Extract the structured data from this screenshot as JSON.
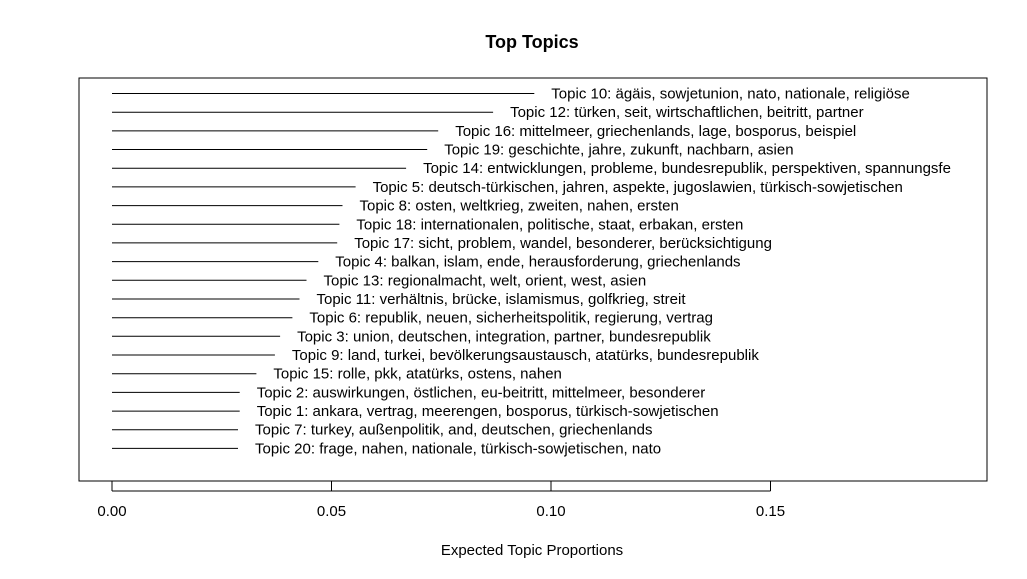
{
  "chart_data": {
    "type": "bar",
    "orientation": "horizontal",
    "title": "Top Topics",
    "xlabel": "Expected Topic Proportions",
    "ylabel": "",
    "xlim": [
      0,
      0.2
    ],
    "x_ticks": [
      0.0,
      0.05,
      0.1,
      0.15
    ],
    "x_tick_labels": [
      "0.00",
      "0.05",
      "0.10",
      "0.15"
    ],
    "grid": false,
    "legend": "none",
    "categories": [
      "Topic 10: ägäis, sowjetunion, nato, nationale, religiöse",
      "Topic 12: türken, seit, wirtschaftlichen, beitritt, partner",
      "Topic 16: mittelmeer, griechenlands, lage, bosporus, beispiel",
      "Topic 19: geschichte, jahre, zukunft, nachbarn, asien",
      "Topic 14: entwicklungen, probleme, bundesrepublik, perspektiven, spannungsfe",
      "Topic 5: deutsch-türkischen, jahren, aspekte, jugoslawien, türkisch-sowjetischen",
      "Topic 8: osten, weltkrieg, zweiten, nahen, ersten",
      "Topic 18: internationalen, politische, staat, erbakan, ersten",
      "Topic 17: sicht, problem, wandel, besonderer, berücksichtigung",
      "Topic 4: balkan, islam, ende, herausforderung, griechenlands",
      "Topic 13: regionalmacht, welt, orient, west, asien",
      "Topic 11: verhältnis, brücke, islamismus, golfkrieg, streit",
      "Topic 6: republik, neuen, sicherheitspolitik, regierung, vertrag",
      "Topic 3: union, deutschen, integration, partner, bundesrepublik",
      "Topic 9: land, turkei, bevölkerungsaustausch, atatürks, bundesrepublik",
      "Topic 15: rolle, pkk, atatürks, ostens, nahen",
      "Topic 2: auswirkungen, östlichen, eu-beitritt, mittelmeer, besonderer",
      "Topic 1: ankara, vertrag, meerengen, bosporus, türkisch-sowjetischen",
      "Topic 7: turkey, außenpolitik, and, deutschen, griechenlands",
      "Topic 20: frage, nahen, nationale, türkisch-sowjetischen, nato"
    ],
    "values": [
      0.0962,
      0.0868,
      0.0743,
      0.0718,
      0.067,
      0.0555,
      0.0525,
      0.0518,
      0.0513,
      0.047,
      0.0443,
      0.0427,
      0.0411,
      0.0383,
      0.0371,
      0.0329,
      0.0291,
      0.0291,
      0.0287,
      0.0287
    ]
  }
}
